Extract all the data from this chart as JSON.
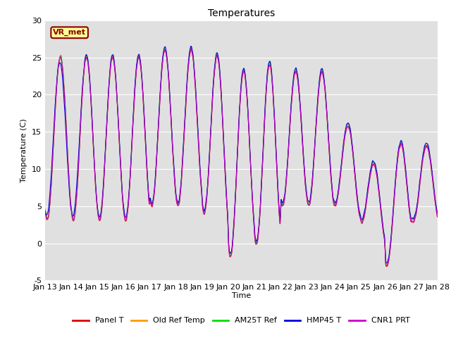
{
  "title": "Temperatures",
  "xlabel": "Time",
  "ylabel": "Temperature (C)",
  "ylim": [
    -5,
    30
  ],
  "x_tick_labels": [
    "Jan 13",
    "Jan 14",
    "Jan 15",
    "Jan 16",
    "Jan 17",
    "Jan 18",
    "Jan 19",
    "Jan 20",
    "Jan 21",
    "Jan 22",
    "Jan 23",
    "Jan 24",
    "Jan 25",
    "Jan 26",
    "Jan 27",
    "Jan 28"
  ],
  "annotation_text": "VR_met",
  "line_colors": {
    "Panel T": "#dd0000",
    "Old Ref Temp": "#ff9900",
    "AM25T Ref": "#00dd00",
    "HMP45 T": "#0000dd",
    "CNR1 PRT": "#cc00cc"
  },
  "legend_labels": [
    "Panel T",
    "Old Ref Temp",
    "AM25T Ref",
    "HMP45 T",
    "CNR1 PRT"
  ],
  "background_color": "#e0e0e0",
  "title_fontsize": 10,
  "axis_fontsize": 8,
  "tick_fontsize": 8,
  "figsize": [
    6.4,
    4.8
  ],
  "dpi": 100
}
